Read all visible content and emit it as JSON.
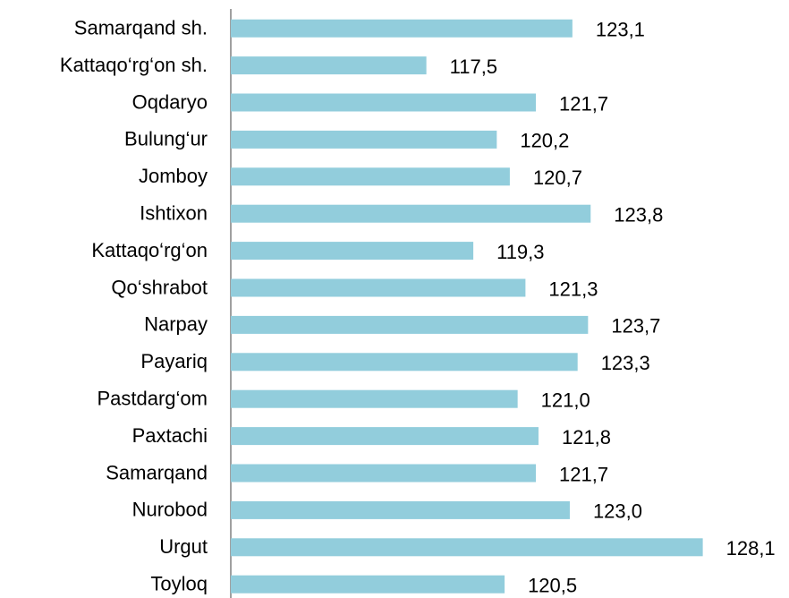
{
  "chart_data": {
    "type": "bar",
    "orientation": "horizontal",
    "categories": [
      "Samarqand sh.",
      "Kattaqo‘rg‘on sh.",
      "Oqdaryo",
      "Bulung‘ur",
      "Jomboy",
      "Ishtixon",
      "Kattaqo‘rg‘on",
      "Qo‘shrabot",
      "Narpay",
      "Payariq",
      "Pastdarg‘om",
      "Paxtachi",
      "Samarqand",
      "Nurobod",
      "Urgut",
      "Toyloq"
    ],
    "values": [
      123.1,
      117.5,
      121.7,
      120.2,
      120.7,
      123.8,
      119.3,
      121.3,
      123.7,
      123.3,
      121.0,
      121.8,
      121.7,
      123.0,
      128.1,
      120.5
    ],
    "value_labels": [
      "123,1",
      "117,5",
      "121,7",
      "120,2",
      "120,7",
      "123,8",
      "119,3",
      "121,3",
      "123,7",
      "123,3",
      "121,0",
      "121,8",
      "121,7",
      "123,0",
      "128,1",
      "120,5"
    ],
    "color": "#92cddc",
    "xlim": [
      110,
      130
    ]
  }
}
